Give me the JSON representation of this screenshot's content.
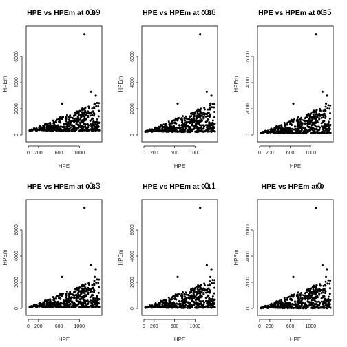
{
  "chart_data": [
    {
      "type": "scatter",
      "title": "HPE vs HPEm at 0.9",
      "title_overlay": "0.9",
      "xlabel": "HPE",
      "ylabel": "HPEm",
      "xlim": [
        0,
        1400
      ],
      "ylim": [
        0,
        8000
      ],
      "x_ticks": [
        0,
        200,
        600,
        1000
      ],
      "x_tick_labels": [
        "0",
        "200",
        "600",
        "1000"
      ],
      "y_ticks": [
        0,
        2000,
        4000,
        6000
      ],
      "y_tick_labels": [
        "0",
        "2000",
        "4000",
        "6000"
      ],
      "grid": false,
      "point_color": "#000000",
      "floor": 300,
      "spread": 1.6,
      "outliers": [
        [
          1100,
          7700
        ],
        [
          1230,
          3300
        ],
        [
          1320,
          3000
        ],
        [
          1300,
          2400
        ],
        [
          660,
          2400
        ]
      ]
    },
    {
      "type": "scatter",
      "title": "HPE vs HPEm at 0.8",
      "title_overlay": "0.8",
      "xlabel": "HPE",
      "ylabel": "HPEm",
      "xlim": [
        0,
        1400
      ],
      "ylim": [
        0,
        8000
      ],
      "x_ticks": [
        0,
        200,
        600,
        1000
      ],
      "x_tick_labels": [
        "0",
        "200",
        "600",
        "1000"
      ],
      "y_ticks": [
        0,
        2000,
        4000,
        6000
      ],
      "y_tick_labels": [
        "0",
        "2000",
        "4000",
        "6000"
      ],
      "grid": false,
      "point_color": "#000000",
      "floor": 220,
      "spread": 1.6,
      "outliers": [
        [
          1100,
          7700
        ],
        [
          1230,
          3300
        ],
        [
          1320,
          3000
        ],
        [
          1300,
          2400
        ],
        [
          660,
          2400
        ]
      ]
    },
    {
      "type": "scatter",
      "title": "HPE vs HPEm at 0.5",
      "title_overlay": "0.5",
      "xlabel": "HPE",
      "ylabel": "HPEm",
      "xlim": [
        0,
        1400
      ],
      "ylim": [
        0,
        8000
      ],
      "x_ticks": [
        0,
        200,
        600,
        1000
      ],
      "x_tick_labels": [
        "0",
        "200",
        "600",
        "1000"
      ],
      "y_ticks": [
        0,
        2000,
        4000,
        6000
      ],
      "y_tick_labels": [
        "0",
        "2000",
        "4000",
        "6000"
      ],
      "grid": false,
      "point_color": "#000000",
      "floor": 120,
      "spread": 1.6,
      "outliers": [
        [
          1100,
          7700
        ],
        [
          1230,
          3300
        ],
        [
          1320,
          3000
        ],
        [
          1300,
          2400
        ],
        [
          660,
          2400
        ]
      ]
    },
    {
      "type": "scatter",
      "title": "HPE vs HPEm at 0.3",
      "title_overlay": "0.3",
      "xlabel": "HPE",
      "ylabel": "HPEm",
      "xlim": [
        0,
        1400
      ],
      "ylim": [
        0,
        8000
      ],
      "x_ticks": [
        0,
        200,
        600,
        1000
      ],
      "x_tick_labels": [
        "0",
        "200",
        "600",
        "1000"
      ],
      "y_ticks": [
        0,
        2000,
        4000,
        6000
      ],
      "y_tick_labels": [
        "0",
        "2000",
        "4000",
        "6000"
      ],
      "grid": false,
      "point_color": "#000000",
      "floor": 70,
      "spread": 1.6,
      "outliers": [
        [
          1100,
          7700
        ],
        [
          1230,
          3300
        ],
        [
          1320,
          3000
        ],
        [
          1300,
          2400
        ],
        [
          660,
          2400
        ]
      ]
    },
    {
      "type": "scatter",
      "title": "HPE vs HPEm at 0.1",
      "title_overlay": "0.1",
      "xlabel": "HPE",
      "ylabel": "HPEm",
      "xlim": [
        0,
        1400
      ],
      "ylim": [
        0,
        8000
      ],
      "x_ticks": [
        0,
        200,
        600,
        1000
      ],
      "x_tick_labels": [
        "0",
        "200",
        "600",
        "1000"
      ],
      "y_ticks": [
        0,
        2000,
        4000,
        6000
      ],
      "y_tick_labels": [
        "0",
        "2000",
        "4000",
        "6000"
      ],
      "grid": false,
      "point_color": "#000000",
      "floor": 30,
      "spread": 1.6,
      "outliers": [
        [
          1100,
          7700
        ],
        [
          1230,
          3300
        ],
        [
          1320,
          3000
        ],
        [
          1300,
          2400
        ],
        [
          660,
          2400
        ]
      ]
    },
    {
      "type": "scatter",
      "title": "HPE vs HPEm at 0",
      "title_overlay": "0",
      "xlabel": "HPE",
      "ylabel": "HPEm",
      "xlim": [
        0,
        1400
      ],
      "ylim": [
        0,
        8000
      ],
      "x_ticks": [
        0,
        200,
        600,
        1000
      ],
      "x_tick_labels": [
        "0",
        "200",
        "600",
        "1000"
      ],
      "y_ticks": [
        0,
        2000,
        4000,
        6000
      ],
      "y_tick_labels": [
        "0",
        "2000",
        "4000",
        "6000"
      ],
      "grid": false,
      "point_color": "#000000",
      "floor": 0,
      "spread": 1.6,
      "outliers": [
        [
          1100,
          7700
        ],
        [
          1230,
          3300
        ],
        [
          1320,
          3000
        ],
        [
          1300,
          2400
        ],
        [
          660,
          2400
        ]
      ]
    }
  ]
}
